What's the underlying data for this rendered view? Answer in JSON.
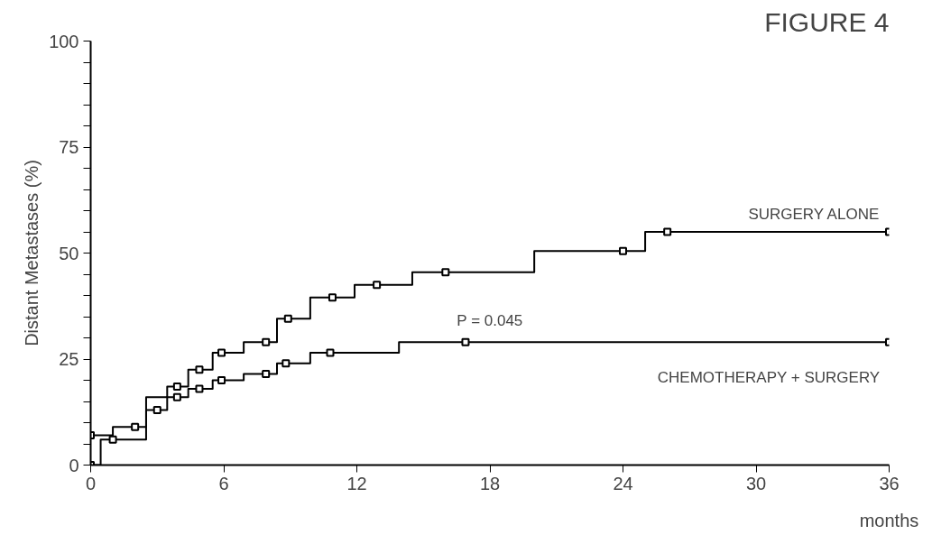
{
  "chart_data": {
    "type": "step",
    "title": "FIGURE 4",
    "xlabel": "months",
    "ylabel": "Distant Metastases (%)",
    "annotations": [
      "P = 0.045"
    ],
    "xlim": [
      0,
      36
    ],
    "xticks": [
      0,
      6,
      12,
      18,
      24,
      30,
      36
    ],
    "ylim": [
      0,
      100
    ],
    "yticks": [
      0,
      {
        "value": 5,
        "label": null
      },
      {
        "value": 10,
        "label": null
      },
      {
        "value": 15,
        "label": null
      },
      {
        "value": 20,
        "label": null
      },
      25,
      {
        "value": 30,
        "label": null
      },
      {
        "value": 35,
        "label": null
      },
      {
        "value": 40,
        "label": null
      },
      {
        "value": 45,
        "label": null
      },
      50,
      {
        "value": 55,
        "label": null
      },
      {
        "value": 60,
        "label": null
      },
      {
        "value": 65,
        "label": null
      },
      {
        "value": 70,
        "label": null
      },
      75,
      {
        "value": 80,
        "label": null
      },
      {
        "value": 85,
        "label": null
      },
      {
        "value": 90,
        "label": null
      },
      {
        "value": 95,
        "label": null
      },
      100
    ],
    "grid": false,
    "marker": "none",
    "line_style": "solid",
    "series": [
      {
        "name": "SURGERY ALONE",
        "color": "#000000",
        "x": [
          0,
          1,
          2.5,
          3.45,
          4.4,
          5.5,
          6.9,
          8.4,
          9.9,
          11.9,
          14.5,
          20,
          25,
          36
        ],
        "values": [
          7,
          9,
          16,
          18.5,
          22.5,
          26.5,
          29,
          34.5,
          39.5,
          42.5,
          45.5,
          50.5,
          55,
          55
        ]
      },
      {
        "name": "CHEMOTHERAPY + SURGERY",
        "color": "#000000",
        "x": [
          0,
          0.45,
          2.5,
          3.45,
          4.4,
          5.5,
          6.9,
          8.4,
          9.9,
          13.9,
          36
        ],
        "values": [
          0,
          6,
          13,
          16,
          18,
          20,
          21.5,
          24,
          26.5,
          29,
          29
        ]
      },
      {
        "type": "scatter",
        "marker": "square",
        "color": "#000000",
        "x": [
          0,
          2,
          3.9,
          4.9,
          5.9,
          7.9,
          8.9,
          10.9,
          12.9,
          16,
          24,
          26,
          36
        ],
        "values": [
          7,
          9,
          18.5,
          22.5,
          26.5,
          29,
          34.5,
          39.5,
          42.5,
          45.5,
          50.5,
          55,
          55
        ]
      },
      {
        "type": "scatter",
        "marker": "square",
        "color": "#000000",
        "x": [
          0,
          1,
          3,
          3.9,
          4.9,
          5.9,
          7.9,
          8.8,
          10.8,
          16.9,
          36
        ],
        "values": [
          0,
          6,
          13,
          16,
          18,
          20,
          21.5,
          24,
          26.5,
          29,
          29
        ]
      }
    ]
  }
}
